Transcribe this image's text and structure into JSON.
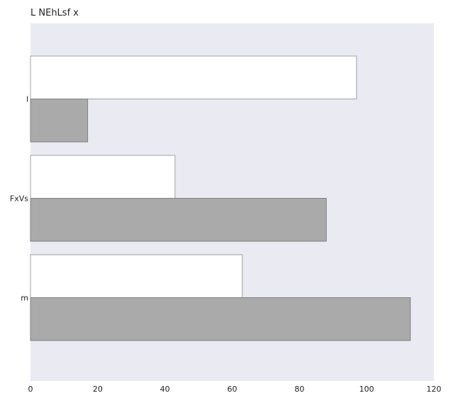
{
  "chart_data": {
    "type": "bar",
    "orientation": "horizontal",
    "title": "L NEhLsf x",
    "xlabel": "",
    "ylabel": "",
    "categories": [
      "l",
      "FxVs",
      "m"
    ],
    "series": [
      {
        "values": [
          97,
          43,
          63
        ],
        "color": "#ffffff"
      },
      {
        "values": [
          17,
          88,
          113
        ],
        "color": "#aaaaaa"
      }
    ],
    "xlim": [
      0,
      120
    ],
    "xticks": [
      0,
      20,
      40,
      60,
      80,
      100,
      120
    ],
    "grid": false,
    "legend": "none",
    "background": "#eaeaf2"
  }
}
